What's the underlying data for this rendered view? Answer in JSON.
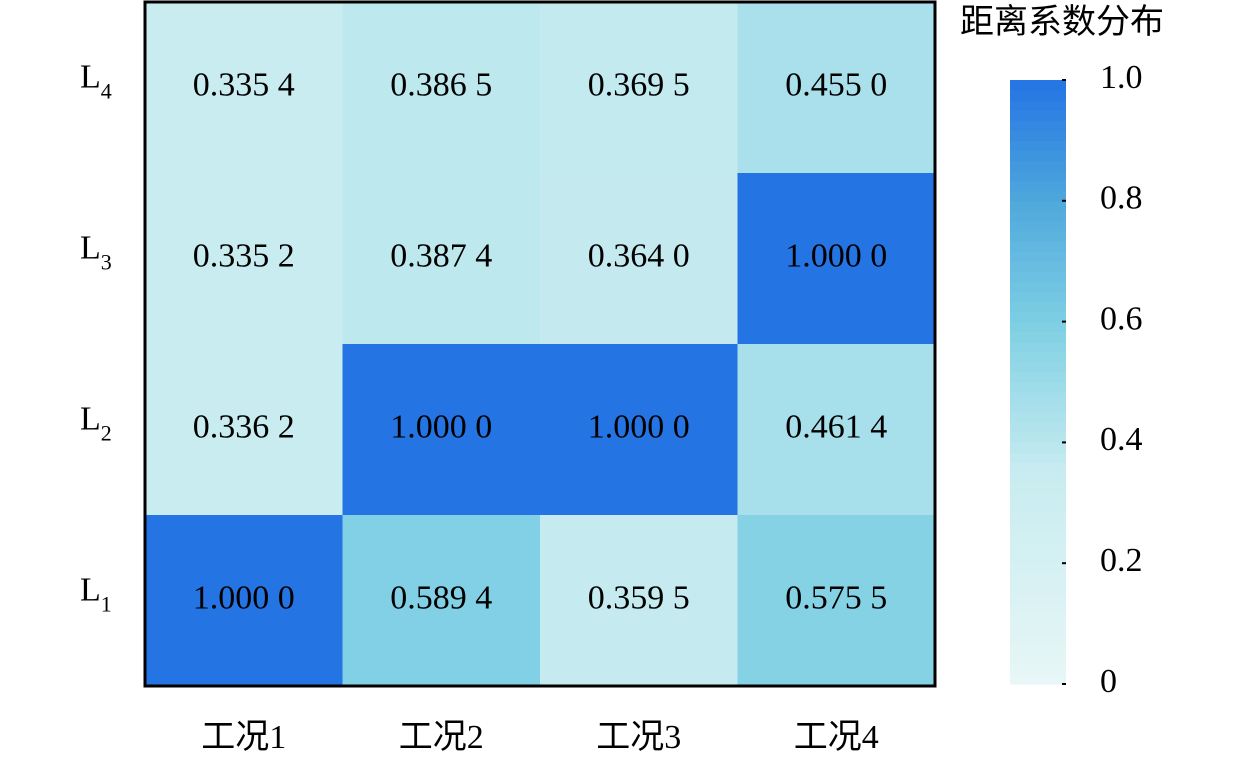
{
  "chart_data": {
    "type": "heatmap",
    "x_categories": [
      "工况1",
      "工况2",
      "工况3",
      "工况4"
    ],
    "y_categories": [
      "L4",
      "L3",
      "L2",
      "L1"
    ],
    "values": [
      [
        0.3354,
        0.3865,
        0.3695,
        0.455
      ],
      [
        0.3352,
        0.3874,
        0.364,
        1.0
      ],
      [
        0.3362,
        1.0,
        1.0,
        0.4614
      ],
      [
        1.0,
        0.5894,
        0.3595,
        0.5755
      ]
    ],
    "value_labels": [
      [
        "0.335 4",
        "0.386 5",
        "0.369 5",
        "0.455 0"
      ],
      [
        "0.335 2",
        "0.387 4",
        "0.364 0",
        "1.000 0"
      ],
      [
        "0.336 2",
        "1.000 0",
        "1.000 0",
        "0.461 4"
      ],
      [
        "1.000 0",
        "0.589 4",
        "0.359 5",
        "0.575 5"
      ]
    ],
    "colorbar_title": "距离系数分布",
    "clim": [
      0,
      1
    ],
    "cticks": [
      0,
      0.2,
      0.4,
      0.6,
      0.8,
      {
        "value": 1,
        "label": "1.0"
      }
    ],
    "colorscale": [
      [
        0,
        "#e8f6f6"
      ],
      [
        0.35,
        "#c8ecf0"
      ],
      [
        0.6,
        "#7ecfe4"
      ],
      [
        0.8,
        "#4ea8dc"
      ],
      [
        1,
        "#2474e4"
      ]
    ]
  }
}
